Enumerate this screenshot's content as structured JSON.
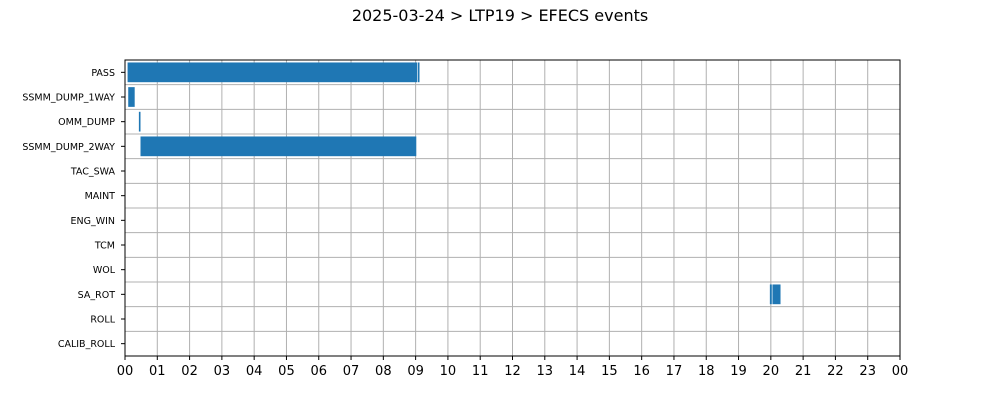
{
  "chart_data": {
    "type": "bar",
    "orientation": "horizontal",
    "title": "2025-03-24 > LTP19 > EFECS events",
    "xlabel": "",
    "ylabel": "",
    "grid": true,
    "bar_color": "#1f77b4",
    "categories": [
      "PASS",
      "SSMM_DUMP_1WAY",
      "OMM_DUMP",
      "SSMM_DUMP_2WAY",
      "TAC_SWA",
      "MAINT",
      "ENG_WIN",
      "TCM",
      "WOL",
      "SA_ROT",
      "ROLL",
      "CALIB_ROLL"
    ],
    "x_ticks": [
      "00",
      "01",
      "02",
      "03",
      "04",
      "05",
      "06",
      "07",
      "08",
      "09",
      "10",
      "11",
      "12",
      "13",
      "14",
      "15",
      "16",
      "17",
      "18",
      "19",
      "20",
      "21",
      "22",
      "23",
      "00"
    ],
    "xlim_hours": [
      0,
      24
    ],
    "events": [
      {
        "category": "PASS",
        "start": 0.08,
        "end": 9.05
      },
      {
        "category": "PASS",
        "start": 9.07,
        "end": 9.12
      },
      {
        "category": "SSMM_DUMP_1WAY",
        "start": 0.1,
        "end": 0.3
      },
      {
        "category": "OMM_DUMP",
        "start": 0.43,
        "end": 0.48
      },
      {
        "category": "SSMM_DUMP_2WAY",
        "start": 0.48,
        "end": 9.02
      },
      {
        "category": "SA_ROT",
        "start": 19.97,
        "end": 20.03
      },
      {
        "category": "SA_ROT",
        "start": 20.05,
        "end": 20.3
      }
    ]
  }
}
